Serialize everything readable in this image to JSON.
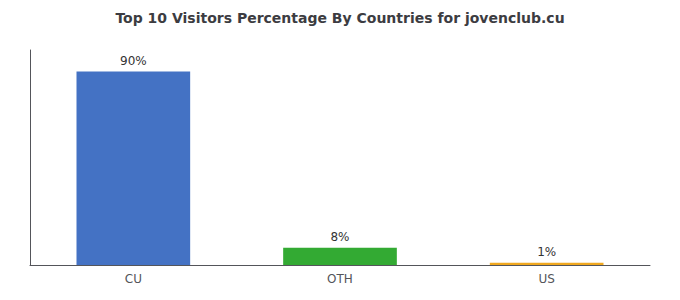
{
  "chart_data": {
    "type": "bar",
    "title": "Top 10 Visitors Percentage By Countries for jovenclub.cu",
    "categories": [
      "CU",
      "OTH",
      "US"
    ],
    "values": [
      90,
      8,
      1
    ],
    "value_labels": [
      "90%",
      "8%",
      "1%"
    ],
    "colors": [
      "#4472c4",
      "#33aa33",
      "#f0a820"
    ],
    "ylim": [
      0,
      100
    ],
    "data_labels": true,
    "tick_labels": "x",
    "grid": false
  }
}
